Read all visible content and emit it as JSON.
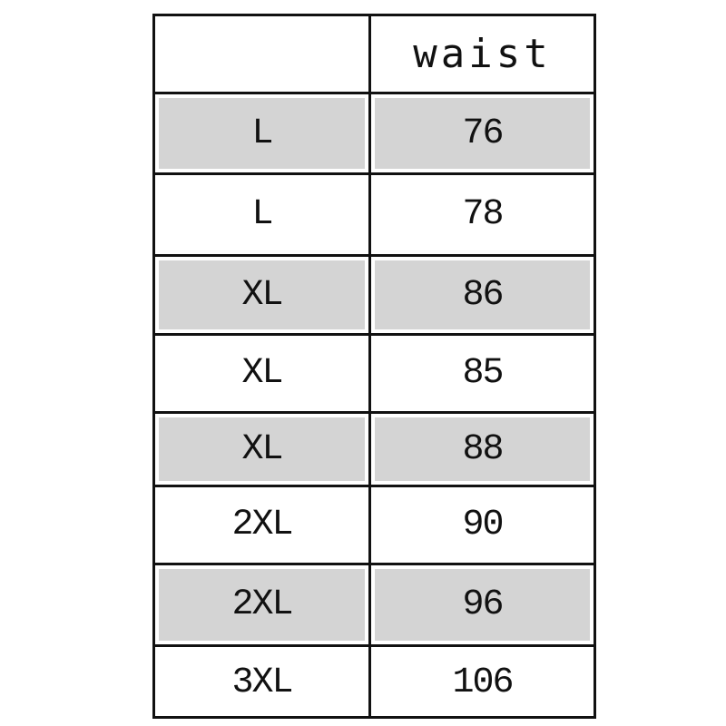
{
  "table": {
    "header": [
      "",
      "waist"
    ],
    "rows": [
      {
        "size": "L",
        "waist": "76"
      },
      {
        "size": "L",
        "waist": "78"
      },
      {
        "size": "XL",
        "waist": "86"
      },
      {
        "size": "XL",
        "waist": "85"
      },
      {
        "size": "XL",
        "waist": "88"
      },
      {
        "size": "2XL",
        "waist": "90"
      },
      {
        "size": "2XL",
        "waist": "96"
      },
      {
        "size": "3XL",
        "waist": "106"
      }
    ],
    "shade_color": "#d4d4d4",
    "border_color": "#111111"
  }
}
